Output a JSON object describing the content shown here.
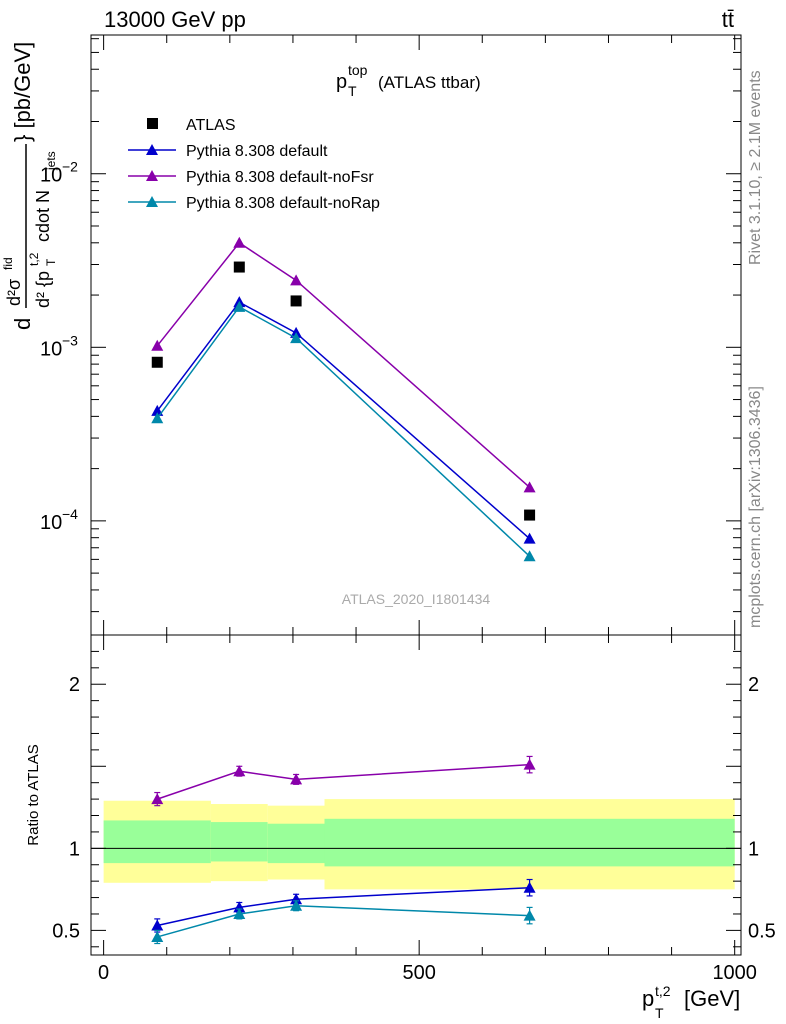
{
  "header": {
    "left_label": "13000 GeV pp",
    "right_label": "tt̄"
  },
  "side_labels": {
    "rivet": "Rivet 3.1.10, ≥ 2.1M events",
    "mcplots": "mcplots.cern.ch [arXiv:1306.3436]"
  },
  "colors": {
    "atlas": "#000000",
    "default": "#0000cc",
    "noFsr": "#8800aa",
    "noRap": "#0088aa",
    "band_outer": "#ffff99",
    "band_inner": "#99ff99"
  },
  "chart_data": [
    {
      "type": "scatter",
      "title": "p_T^top (ATLAS ttbar)",
      "title_parts": {
        "base": "p",
        "sup": "top",
        "sub": "T",
        "suffix": "(ATLAS ttbar)"
      },
      "ylabel": "d²σ^fid / d² {p_T^t,2 cdot N_jets} [pb/GeV]",
      "ylabel_parts": {
        "d": "d",
        "num": "d²σ",
        "num_sup": "fid",
        "den_pre": "d² {p",
        "den_sub": "T",
        "den_sup": "t,2",
        "den_post": "cdot N",
        "den_post_sub": "jets",
        "unit": "} [pb/GeV]"
      },
      "yscale": "log",
      "ylim": [
        2.2e-05,
        0.063
      ],
      "xlim": [
        -20,
        1010
      ],
      "yticks_labels": [
        {
          "value": 0.01,
          "base": "10",
          "exp": "−2"
        },
        {
          "value": 0.001,
          "base": "10",
          "exp": "−3"
        },
        {
          "value": 0.0001,
          "base": "10",
          "exp": "−4"
        }
      ],
      "watermark": "ATLAS_2020_I1801434",
      "legend_position": "top-left",
      "series": [
        {
          "name": "ATLAS",
          "marker": "square",
          "color": "#000000",
          "x": [
            85,
            215,
            305,
            675
          ],
          "y": [
            0.00082,
            0.0029,
            0.00185,
            0.000108
          ]
        },
        {
          "name": "Pythia 8.308 default",
          "marker": "triangle",
          "color": "#0000cc",
          "x": [
            85,
            215,
            305,
            675
          ],
          "y": [
            0.00043,
            0.00182,
            0.00121,
            7.9e-05
          ]
        },
        {
          "name": "Pythia 8.308 default-noFsr",
          "marker": "triangle",
          "color": "#8800aa",
          "x": [
            85,
            215,
            305,
            675
          ],
          "y": [
            0.00102,
            0.004,
            0.00243,
            0.000156
          ]
        },
        {
          "name": "Pythia 8.308 default-noRap",
          "marker": "triangle",
          "color": "#0088aa",
          "x": [
            85,
            215,
            305,
            675
          ],
          "y": [
            0.00039,
            0.00171,
            0.00113,
            6.25e-05
          ]
        }
      ]
    },
    {
      "type": "scatter",
      "ylabel": "Ratio to ATLAS",
      "xlabel": "p_T^t,2 [GeV]",
      "xlabel_parts": {
        "base": "p",
        "sub": "T",
        "sup": "t,2",
        "suffix": "[GeV]"
      },
      "ylim": [
        0.35,
        2.3
      ],
      "xlim": [
        -20,
        1010
      ],
      "xticks": [
        0,
        500,
        1000
      ],
      "xtick_labels": [
        "0",
        "500",
        "1000"
      ],
      "yticks": [
        0.5,
        1,
        2
      ],
      "ytick_labels": [
        "0.5",
        "1",
        "2"
      ],
      "bands": [
        {
          "x0": 0,
          "x1": 170,
          "outer": [
            0.79,
            1.29
          ],
          "inner": [
            0.91,
            1.17
          ]
        },
        {
          "x0": 170,
          "x1": 260,
          "outer": [
            0.8,
            1.27
          ],
          "inner": [
            0.92,
            1.16
          ]
        },
        {
          "x0": 260,
          "x1": 350,
          "outer": [
            0.81,
            1.26
          ],
          "inner": [
            0.91,
            1.15
          ]
        },
        {
          "x0": 350,
          "x1": 1000,
          "outer": [
            0.75,
            1.3
          ],
          "inner": [
            0.89,
            1.18
          ]
        }
      ],
      "series": [
        {
          "name": "Pythia 8.308 default-noFsr",
          "color": "#8800aa",
          "x": [
            85,
            215,
            305,
            675
          ],
          "y": [
            1.3,
            1.47,
            1.42,
            1.51
          ],
          "err": [
            0.04,
            0.03,
            0.03,
            0.05
          ]
        },
        {
          "name": "Pythia 8.308 default",
          "color": "#0000cc",
          "x": [
            85,
            215,
            305,
            675
          ],
          "y": [
            0.53,
            0.64,
            0.69,
            0.76
          ],
          "err": [
            0.04,
            0.03,
            0.03,
            0.05
          ]
        },
        {
          "name": "Pythia 8.308 default-noRap",
          "color": "#0088aa",
          "x": [
            85,
            215,
            305,
            675
          ],
          "y": [
            0.46,
            0.6,
            0.65,
            0.59
          ],
          "err": [
            0.04,
            0.03,
            0.03,
            0.05
          ]
        }
      ]
    }
  ]
}
